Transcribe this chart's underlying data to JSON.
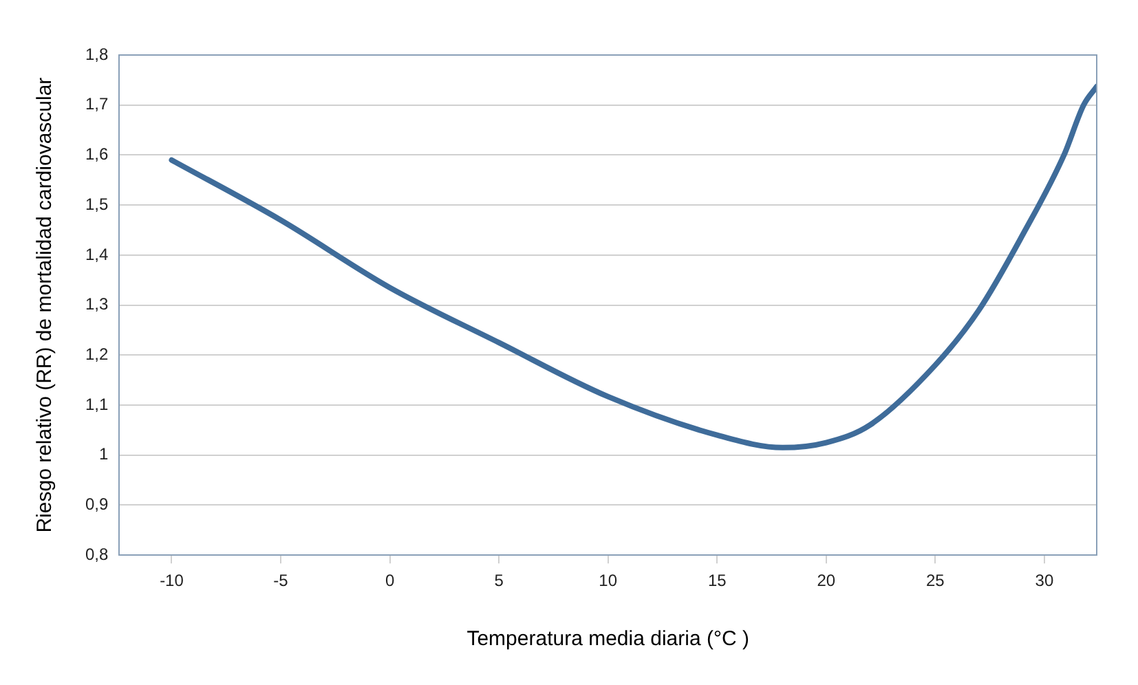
{
  "chart_data": {
    "type": "line",
    "xlabel": "Temperatura media diaria (°C )",
    "ylabel": "Riesgo relativo (RR) de mortalidad cardiovascular",
    "x": [
      -10,
      -5,
      0,
      5,
      10,
      15,
      18,
      20,
      22,
      25,
      27,
      29,
      30.9,
      31.8,
      32.4
    ],
    "series": [
      {
        "color": "#3f6c9a",
        "values": [
          1.59,
          1.47,
          1.335,
          1.225,
          1.117,
          1.04,
          1.015,
          1.025,
          1.06,
          1.18,
          1.29,
          1.44,
          1.6,
          1.7,
          1.737
        ]
      }
    ],
    "xlim": [
      -12.4,
      32.4
    ],
    "xticks": [
      -10,
      -5,
      0,
      5,
      10,
      15,
      20,
      25,
      30
    ],
    "ylim": [
      0.8,
      1.8
    ],
    "yticks": [
      {
        "value": 0.8,
        "label": "0,8"
      },
      {
        "value": 0.9,
        "label": "0,9"
      },
      {
        "value": 1,
        "label": "1"
      },
      {
        "value": 1.1,
        "label": "1,1"
      },
      {
        "value": 1.2,
        "label": "1,2"
      },
      {
        "value": 1.3,
        "label": "1,3"
      },
      {
        "value": 1.4,
        "label": "1,4"
      },
      {
        "value": 1.5,
        "label": "1,5"
      },
      {
        "value": 1.6,
        "label": "1,6"
      },
      {
        "value": 1.7,
        "label": "1,7"
      },
      {
        "value": 1.8,
        "label": "1,8"
      }
    ],
    "grid": "y",
    "legend": false,
    "marker": "none",
    "line_style": "solid"
  }
}
